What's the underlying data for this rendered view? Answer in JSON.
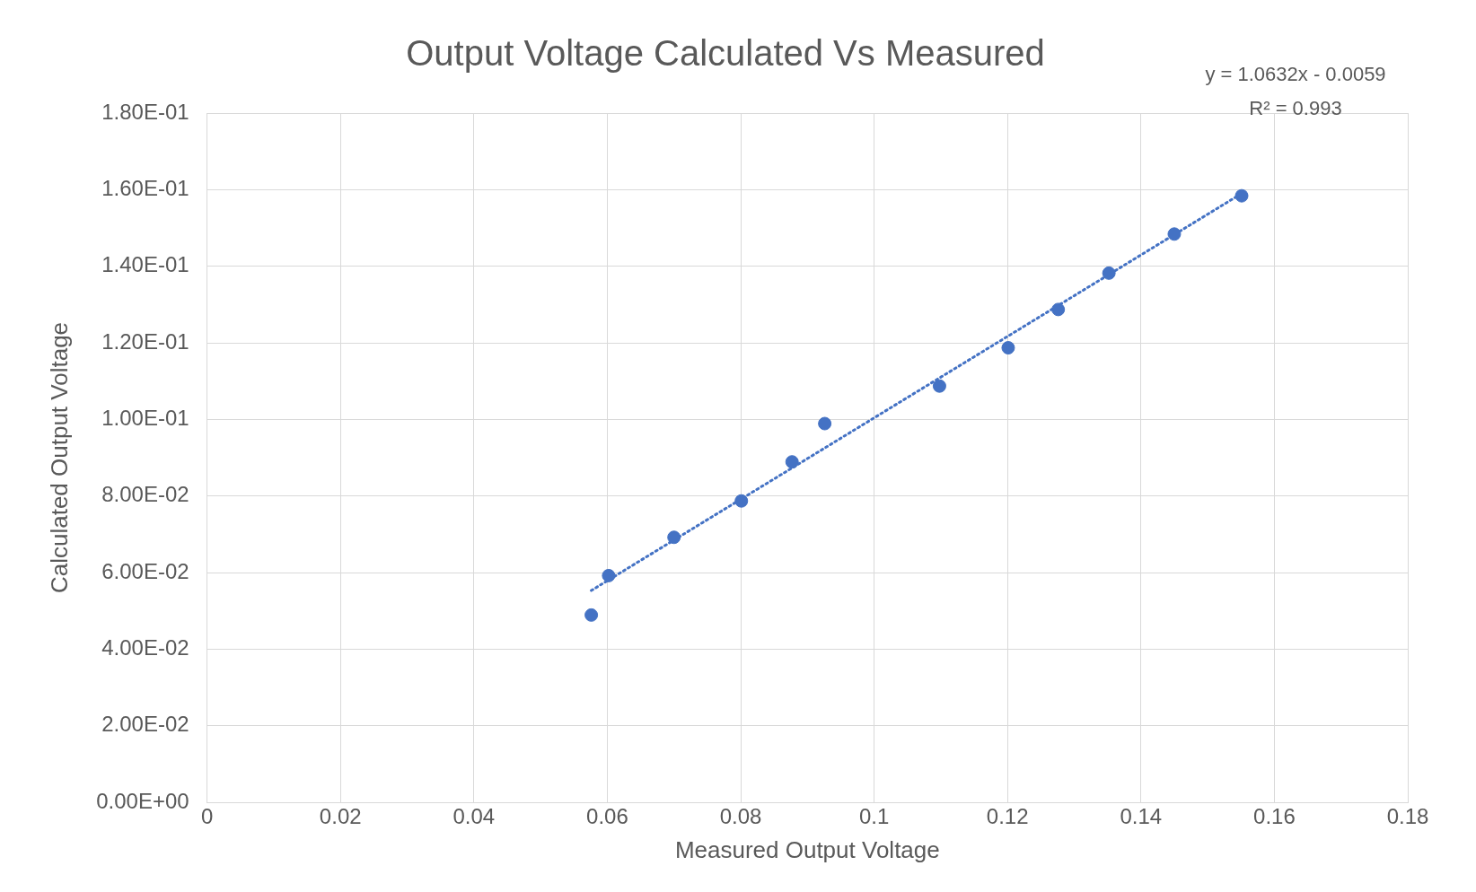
{
  "chart_data": {
    "type": "scatter",
    "title": "Output Voltage Calculated Vs Measured",
    "xlabel": "Measured Output Voltage",
    "ylabel": "Calculated Output Voltage",
    "annotations": [
      "y = 1.0632x - 0.0059",
      "R² = 0.993"
    ],
    "series": [
      {
        "color": "#4472c4",
        "marker": "circle",
        "x": [
          0.0576,
          0.0602,
          0.07,
          0.0801,
          0.0877,
          0.0926,
          0.1098,
          0.1201,
          0.1276,
          0.1352,
          0.145,
          0.1551
        ],
        "values": [
          0.0489,
          0.0592,
          0.0692,
          0.0787,
          0.0889,
          0.0989,
          0.1087,
          0.1187,
          0.1287,
          0.1382,
          0.1484,
          0.1584
        ]
      },
      {
        "type": "line",
        "color": "#4472c4",
        "marker": "none",
        "line_style": "dotted",
        "x": [
          0.0576,
          0.1551
        ],
        "values": [
          0.0553,
          0.159
        ]
      }
    ],
    "xlim": [
      0,
      0.18
    ],
    "xticks": [
      0,
      0.02,
      0.04,
      0.06,
      0.08,
      0.1,
      0.12,
      0.14,
      0.16,
      0.18
    ],
    "ylim": [
      0,
      0.18
    ],
    "yticks": [
      {
        "value": 0,
        "label": "0.00E+00"
      },
      {
        "value": 0.02,
        "label": "2.00E-02"
      },
      {
        "value": 0.04,
        "label": "4.00E-02"
      },
      {
        "value": 0.06,
        "label": "6.00E-02"
      },
      {
        "value": 0.08,
        "label": "8.00E-02"
      },
      {
        "value": 0.1,
        "label": "1.00E-01"
      },
      {
        "value": 0.12,
        "label": "1.20E-01"
      },
      {
        "value": 0.14,
        "label": "1.40E-01"
      },
      {
        "value": 0.16,
        "label": "1.60E-01"
      },
      {
        "value": 0.18,
        "label": "1.80E-01"
      }
    ],
    "grid": true,
    "legend": false
  }
}
